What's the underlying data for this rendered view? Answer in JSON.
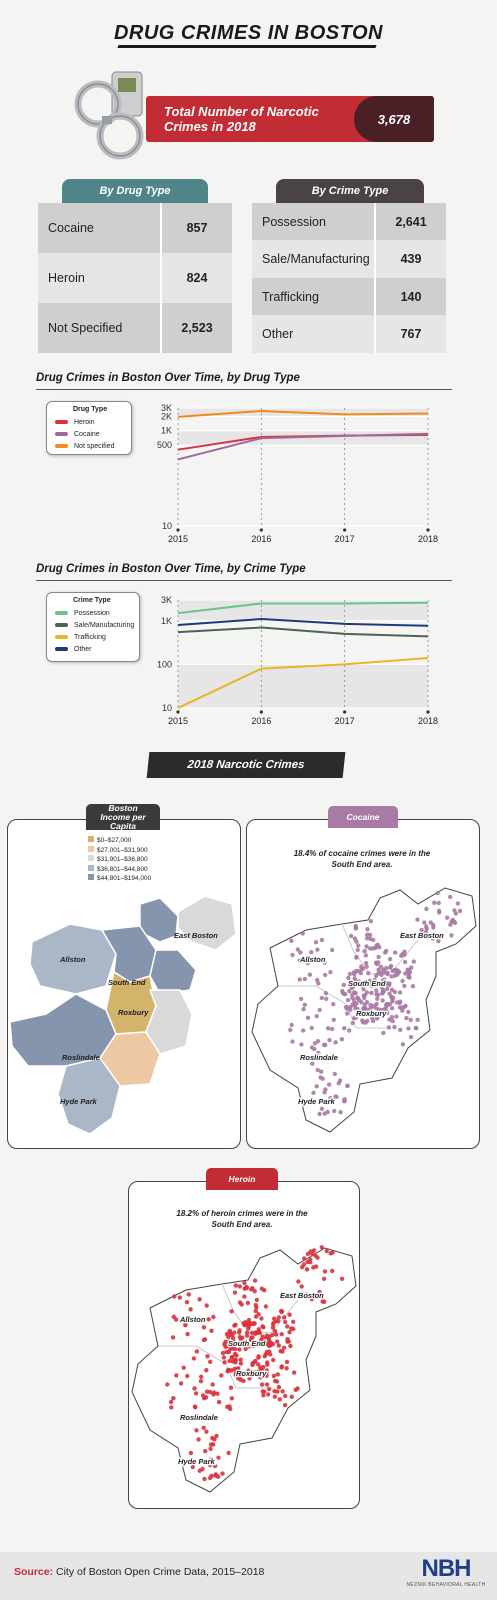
{
  "title": "DRUG CRIMES IN BOSTON",
  "total": {
    "label": "Total Number of Narcotic Crimes in 2018",
    "value": "3,678"
  },
  "by_drug": {
    "tab": "By Drug Type",
    "rows": [
      {
        "label": "Cocaine",
        "value": "857"
      },
      {
        "label": "Heroin",
        "value": "824"
      },
      {
        "label": "Not Specified",
        "value": "2,523"
      }
    ]
  },
  "by_crime": {
    "tab": "By Crime Type",
    "rows": [
      {
        "label": "Possession",
        "value": "2,641"
      },
      {
        "label": "Sale/Manufacturing",
        "value": "439"
      },
      {
        "label": "Trafficking",
        "value": "140"
      },
      {
        "label": "Other",
        "value": "767"
      }
    ]
  },
  "chart_data": [
    {
      "type": "line",
      "title": "Drug Crimes in Boston Over Time, by Drug Type",
      "legend_title": "Drug Type",
      "legend_position": "top-left",
      "x": [
        2015,
        2016,
        2017,
        2018
      ],
      "yscale": "log",
      "ylim": [
        10,
        3000
      ],
      "yticks": [
        "3K",
        "2K",
        "1K",
        "500",
        "10"
      ],
      "ytick_values": [
        3000,
        2000,
        1000,
        500,
        10
      ],
      "series": [
        {
          "name": "Heroin",
          "color": "#d9323b",
          "values": [
            400,
            740,
            790,
            820
          ]
        },
        {
          "name": "Cocaine",
          "color": "#a2669e",
          "values": [
            250,
            700,
            780,
            860
          ]
        },
        {
          "name": "Not specified",
          "color": "#f28a1c",
          "values": [
            1950,
            2600,
            2200,
            2300
          ]
        }
      ]
    },
    {
      "type": "line",
      "title": "Drug Crimes in Boston Over Time, by Crime Type",
      "legend_title": "Crime Type",
      "legend_position": "top-left",
      "x": [
        2015,
        2016,
        2017,
        2018
      ],
      "yscale": "log",
      "ylim": [
        10,
        3000
      ],
      "yticks": [
        "3K",
        "1K",
        "100",
        "10"
      ],
      "ytick_values": [
        3000,
        1000,
        100,
        10
      ],
      "series": [
        {
          "name": "Possession",
          "color": "#6cc48a",
          "values": [
            1500,
            2500,
            2500,
            2600
          ]
        },
        {
          "name": "Sale/Manufacturing",
          "color": "#4c6356",
          "values": [
            550,
            700,
            500,
            440
          ]
        },
        {
          "name": "Trafficking",
          "color": "#e9b427",
          "values": [
            10,
            80,
            100,
            140
          ]
        },
        {
          "name": "Other",
          "color": "#1f3a7a",
          "values": [
            800,
            1100,
            850,
            770
          ]
        }
      ]
    }
  ],
  "maps_banner": "2018 Narcotic Crimes",
  "income": {
    "tab": "Boston Income per Capita",
    "legend": [
      {
        "label": "$0–$27,000",
        "color": "#d4b36a"
      },
      {
        "label": "$27,001–$31,900",
        "color": "#ecc9a4"
      },
      {
        "label": "$31,901–$36,800",
        "color": "#d9d9d9"
      },
      {
        "label": "$36,801–$44,800",
        "color": "#a9b7c7"
      },
      {
        "label": "$44,801–$194,000",
        "color": "#8595ad"
      }
    ]
  },
  "neighborhoods": {
    "east_boston": "East Boston",
    "allston": "Allston",
    "south_end": "South End",
    "roxbury": "Roxbury",
    "roslindale": "Roslindale",
    "hyde_park": "Hyde Park"
  },
  "cocaine_map": {
    "tab": "Cocaine",
    "caption": "18.4% of cocaine crimes were in the South End area.",
    "color": "#a87aa5"
  },
  "heroin_map": {
    "tab": "Heroin",
    "caption": "18.2% of heroin crimes were in the South End area.",
    "color": "#d9323b"
  },
  "source": {
    "label": "Source:",
    "text": "City of Boston Open Crime Data, 2015–2018"
  },
  "logo": {
    "mark": "NBH",
    "name": "NEZNIK BEHAVIORAL HEALTH"
  }
}
